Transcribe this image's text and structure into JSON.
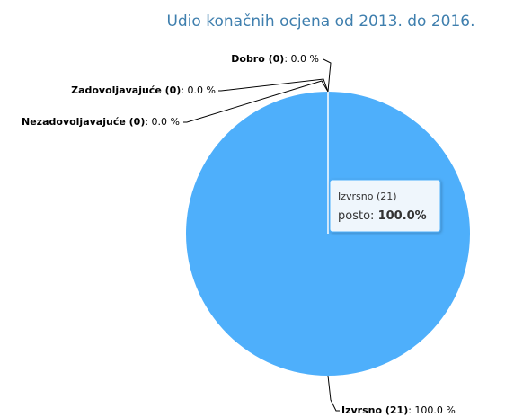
{
  "chart_data": {
    "type": "pie",
    "title": "Udio konačnih ocjena od 2013. do 2016.",
    "categories": [
      "Izvrsno (21)",
      "Dobro (0)",
      "Zadovoljavajuće (0)",
      "Nezadovoljavajuće (0)"
    ],
    "values": [
      100,
      0,
      0,
      0
    ],
    "value_labels": [
      "100.0 %",
      "0.0 %",
      "0.0 %",
      "0.0 %"
    ],
    "colors": [
      "#4eaffb",
      "#434348",
      "#90ed7d",
      "#f7a35c"
    ],
    "tooltip": {
      "name": "Izvrsno (21)",
      "label": "posto:",
      "value": "100.0%"
    }
  }
}
